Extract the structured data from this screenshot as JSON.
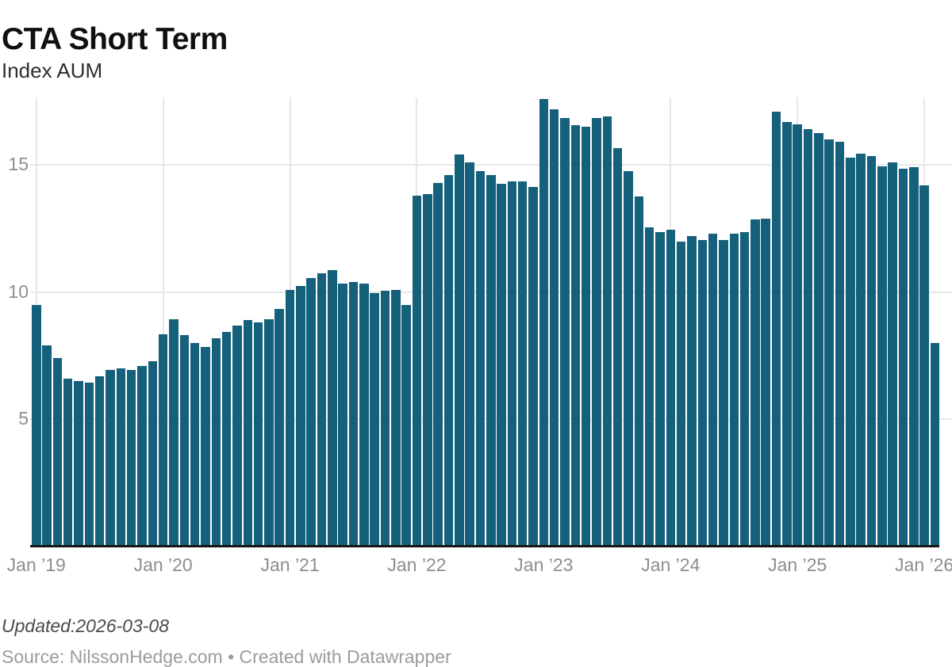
{
  "header": {
    "title": "CTA Short Term",
    "subtitle": "Index AUM"
  },
  "footer": {
    "updated": "Updated:2026-03-08",
    "source": "Source: NilssonHedge.com • Created with Datawrapper"
  },
  "colors": {
    "bar": "#15607a",
    "gridline": "#e7e7e7",
    "baseline": "#161616",
    "tick_label": "#8e8e8e"
  },
  "chart_data": {
    "type": "bar",
    "title": "CTA Short Term",
    "subtitle": "Index AUM",
    "xlabel": "",
    "ylabel": "",
    "grid": "on",
    "legend": "none",
    "ylim": [
      0,
      17.65
    ],
    "y_ticks": [
      5,
      10,
      15
    ],
    "x_tick_indices": [
      0,
      12,
      24,
      36,
      48,
      60,
      72,
      84
    ],
    "x_tick_labels": [
      "Jan ’19",
      "Jan ’20",
      "Jan ’21",
      "Jan ’22",
      "Jan ’23",
      "Jan ’24",
      "Jan ’25",
      "Jan ’26"
    ],
    "bar_color": "#15607a",
    "x": [
      "2019-01",
      "2019-02",
      "2019-03",
      "2019-04",
      "2019-05",
      "2019-06",
      "2019-07",
      "2019-08",
      "2019-09",
      "2019-10",
      "2019-11",
      "2019-12",
      "2020-01",
      "2020-02",
      "2020-03",
      "2020-04",
      "2020-05",
      "2020-06",
      "2020-07",
      "2020-08",
      "2020-09",
      "2020-10",
      "2020-11",
      "2020-12",
      "2021-01",
      "2021-02",
      "2021-03",
      "2021-04",
      "2021-05",
      "2021-06",
      "2021-07",
      "2021-08",
      "2021-09",
      "2021-10",
      "2021-11",
      "2021-12",
      "2022-01",
      "2022-02",
      "2022-03",
      "2022-04",
      "2022-05",
      "2022-06",
      "2022-07",
      "2022-08",
      "2022-09",
      "2022-10",
      "2022-11",
      "2022-12",
      "2023-01",
      "2023-02",
      "2023-03",
      "2023-04",
      "2023-05",
      "2023-06",
      "2023-07",
      "2023-08",
      "2023-09",
      "2023-10",
      "2023-11",
      "2023-12",
      "2024-01",
      "2024-02",
      "2024-03",
      "2024-04",
      "2024-05",
      "2024-06",
      "2024-07",
      "2024-08",
      "2024-09",
      "2024-10",
      "2024-11",
      "2024-12",
      "2025-01",
      "2025-02",
      "2025-03",
      "2025-04",
      "2025-05",
      "2025-06",
      "2025-07",
      "2025-08",
      "2025-09",
      "2025-10",
      "2025-11",
      "2025-12",
      "2026-01",
      "2026-02"
    ],
    "values": [
      9.5,
      7.9,
      7.4,
      6.6,
      6.5,
      6.45,
      6.7,
      6.95,
      7.0,
      6.95,
      7.1,
      7.3,
      8.35,
      8.95,
      8.3,
      8.0,
      7.85,
      8.2,
      8.45,
      8.7,
      8.9,
      8.8,
      8.95,
      9.35,
      10.1,
      10.25,
      10.55,
      10.75,
      10.85,
      10.35,
      10.4,
      10.35,
      9.95,
      10.05,
      10.1,
      9.5,
      13.8,
      13.85,
      14.3,
      14.6,
      15.4,
      15.1,
      14.75,
      14.6,
      14.25,
      14.35,
      14.35,
      14.15,
      17.6,
      17.2,
      16.85,
      16.55,
      16.5,
      16.85,
      16.9,
      15.65,
      14.75,
      13.75,
      12.55,
      12.35,
      12.45,
      12.0,
      12.2,
      12.05,
      12.3,
      12.05,
      12.3,
      12.35,
      12.85,
      12.9,
      17.1,
      16.7,
      16.6,
      16.4,
      16.25,
      16.0,
      15.9,
      15.3,
      15.45,
      15.35,
      14.95,
      15.1,
      14.85,
      14.9,
      14.2,
      8.0
    ]
  }
}
